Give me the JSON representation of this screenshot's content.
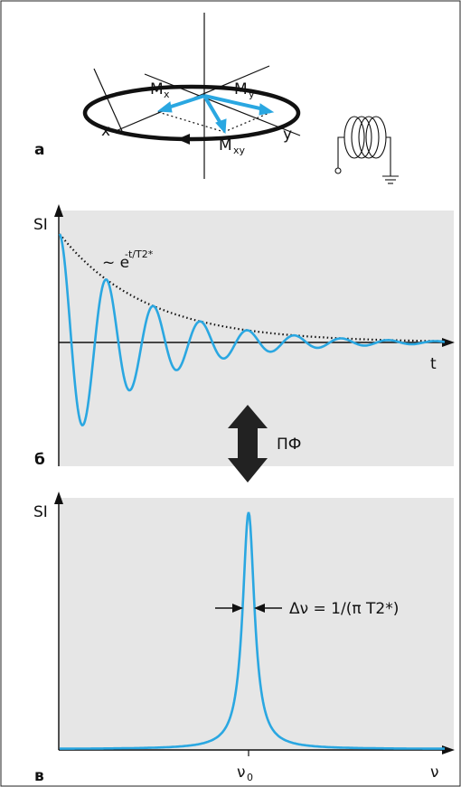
{
  "panel_a": {
    "letter": "а",
    "labels": {
      "mx_main": "M",
      "mx_sub": "x",
      "my_main": "M",
      "my_sub": "y",
      "mxy_main": "M",
      "mxy_sub": "xy",
      "x_axis": "x",
      "y_axis": "y"
    },
    "colors": {
      "vector": "#2aa7e1",
      "ring": "#111111"
    }
  },
  "panel_b": {
    "letter": "б",
    "y_label": "SI",
    "x_label": "t",
    "envelope_main": "~ e",
    "envelope_exp": "-t/T2*",
    "transform_label": "ПФ"
  },
  "panel_c": {
    "letter": "в",
    "y_label": "SI",
    "x_label": "ν",
    "peak_main": "ν",
    "peak_sub": "0",
    "width_formula": "Δν = 1/(π T2*)"
  },
  "colors": {
    "signal": "#2aa7e1",
    "panel_bg": "#e6e6e6",
    "axis": "#111111",
    "envelope": "#111111"
  }
}
